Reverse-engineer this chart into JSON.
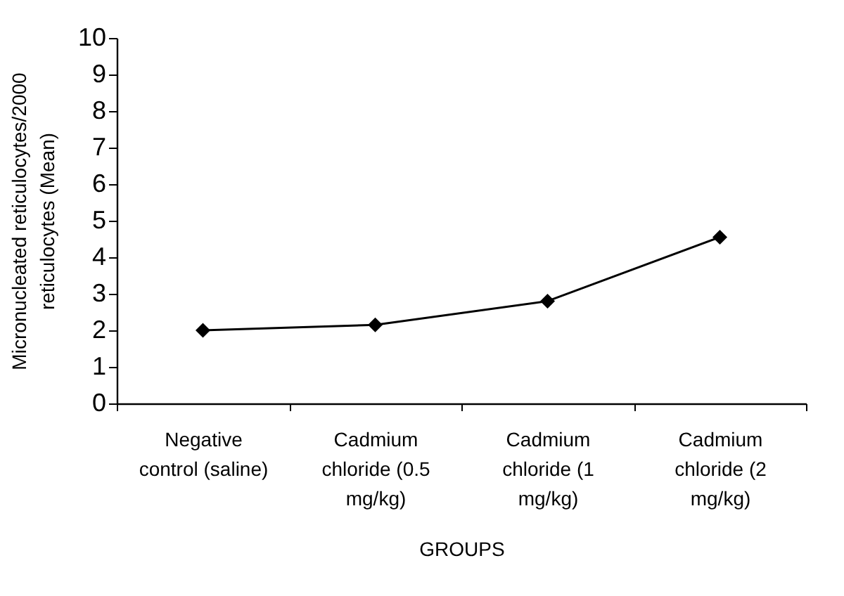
{
  "chart_data": {
    "type": "line",
    "xlabel": "GROUPS",
    "ylabel": "Micronucleated reticulocytes/2000 reticulocytes (Mean)",
    "categories": [
      "Negative control (saline)",
      "Cadmium chloride (0.5 mg/kg)",
      "Cadmium chloride (1 mg/kg)",
      "Cadmium chloride (2 mg/kg)"
    ],
    "series": [
      {
        "color": "#000000",
        "values": [
          2.0,
          2.15,
          2.8,
          4.55
        ]
      }
    ],
    "ylim": [
      0,
      10
    ],
    "yticks": [
      0,
      1,
      2,
      3,
      4,
      5,
      6,
      7,
      8,
      9,
      10
    ],
    "grid": false,
    "legend": false,
    "marker": "diamond",
    "line_style": "solid"
  }
}
